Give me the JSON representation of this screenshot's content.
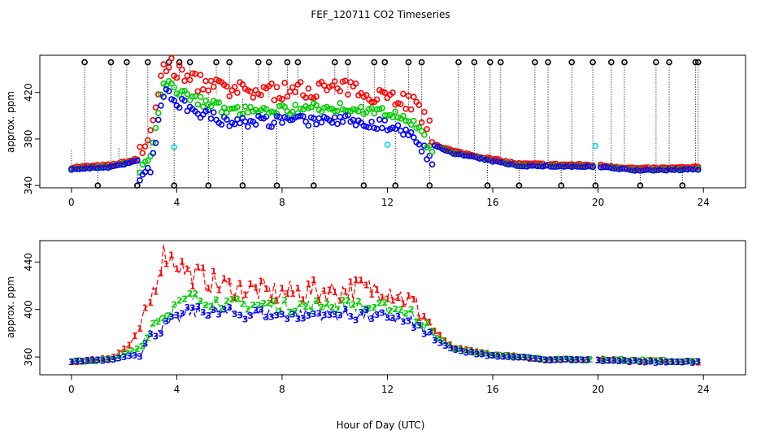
{
  "title": "FEF_120711  CO2 Timeseries",
  "xlabel": "Hour of Day (UTC)",
  "colors": {
    "series1": "#ff0000",
    "series2": "#00cc00",
    "series3": "#0000ff",
    "extra": "#00dddd",
    "extreme": "#000000"
  },
  "chart_data": [
    {
      "type": "scatter",
      "panel": "top",
      "ylabel": "approx. ppm",
      "xlim": [
        -1.2,
        25.6
      ],
      "ylim": [
        338,
        452
      ],
      "xticks": [
        "0",
        "4",
        "8",
        "12",
        "16",
        "20",
        "24"
      ],
      "xtick_values": [
        0,
        4,
        8,
        12,
        16,
        20,
        24
      ],
      "yticks": [
        "340",
        "380",
        "420"
      ],
      "ytick_values": [
        340,
        380,
        420
      ],
      "grid": false,
      "legend": "none",
      "markers": "open circles",
      "series_note": "Red, green and blue circles per time step; cyan occasional points; black circles mark extreme readings at top and bottom of the range, joined to the data by dotted vertical lines.",
      "key_points": [
        {
          "x": 0.0,
          "y": 355
        },
        {
          "x": 1.5,
          "y": 357
        },
        {
          "x": 2.5,
          "y": 362
        },
        {
          "x": 3.0,
          "y": 375
        },
        {
          "x": 3.5,
          "y": 440
        },
        {
          "x": 4.5,
          "y": 425
        },
        {
          "x": 6.0,
          "y": 415
        },
        {
          "x": 8.0,
          "y": 415
        },
        {
          "x": 10.0,
          "y": 418
        },
        {
          "x": 12.0,
          "y": 412
        },
        {
          "x": 13.0,
          "y": 405
        },
        {
          "x": 13.8,
          "y": 375
        },
        {
          "x": 14.5,
          "y": 369
        },
        {
          "x": 16.0,
          "y": 362
        },
        {
          "x": 17.0,
          "y": 358
        },
        {
          "x": 20.0,
          "y": 357
        },
        {
          "x": 21.5,
          "y": 354
        },
        {
          "x": 23.8,
          "y": 355
        }
      ],
      "extreme_times": [
        0.5,
        1.0,
        1.5,
        2.1,
        2.5,
        2.9,
        3.7,
        3.9,
        4.1,
        4.5,
        5.2,
        5.5,
        6.0,
        6.5,
        7.1,
        7.5,
        7.8,
        8.2,
        8.6,
        9.2,
        10.0,
        10.5,
        11.1,
        11.5,
        11.9,
        12.3,
        12.8,
        13.3,
        13.6,
        14.7,
        15.3,
        15.8,
        15.9,
        16.3,
        17.0,
        17.6,
        18.1,
        18.6,
        19.0,
        19.8,
        19.9,
        20.5,
        21.0,
        21.6,
        22.2,
        22.7,
        23.2,
        23.7,
        23.8
      ]
    },
    {
      "type": "line",
      "panel": "bottom",
      "ylabel": "approx. ppm",
      "xlim": [
        -1.2,
        25.6
      ],
      "ylim": [
        345,
        458
      ],
      "xticks": [
        "0",
        "4",
        "8",
        "12",
        "16",
        "20",
        "24"
      ],
      "xtick_values": [
        0,
        4,
        8,
        12,
        16,
        20,
        24
      ],
      "yticks": [
        "360",
        "400",
        "440"
      ],
      "ytick_values": [
        360,
        400,
        440
      ],
      "grid": false,
      "legend": "none",
      "series": [
        {
          "label": "1",
          "color": "#ff0000",
          "key_points": [
            {
              "x": 0.0,
              "y": 356
            },
            {
              "x": 1.5,
              "y": 359
            },
            {
              "x": 2.2,
              "y": 370
            },
            {
              "x": 2.8,
              "y": 392
            },
            {
              "x": 3.5,
              "y": 448
            },
            {
              "x": 4.5,
              "y": 430
            },
            {
              "x": 6.0,
              "y": 418
            },
            {
              "x": 8.0,
              "y": 414
            },
            {
              "x": 10.0,
              "y": 416
            },
            {
              "x": 12.0,
              "y": 418
            },
            {
              "x": 13.0,
              "y": 405
            },
            {
              "x": 13.8,
              "y": 382
            },
            {
              "x": 14.5,
              "y": 368
            },
            {
              "x": 16.0,
              "y": 362
            },
            {
              "x": 18.0,
              "y": 358
            },
            {
              "x": 20.0,
              "y": 358
            },
            {
              "x": 22.0,
              "y": 357
            },
            {
              "x": 23.8,
              "y": 356
            }
          ]
        },
        {
          "label": "2",
          "color": "#00cc00",
          "key_points": [
            {
              "x": 0.0,
              "y": 356
            },
            {
              "x": 1.5,
              "y": 358
            },
            {
              "x": 2.5,
              "y": 367
            },
            {
              "x": 3.2,
              "y": 392
            },
            {
              "x": 4.5,
              "y": 410
            },
            {
              "x": 6.0,
              "y": 405
            },
            {
              "x": 8.0,
              "y": 403
            },
            {
              "x": 10.0,
              "y": 404
            },
            {
              "x": 12.0,
              "y": 402
            },
            {
              "x": 13.0,
              "y": 396
            },
            {
              "x": 13.8,
              "y": 378
            },
            {
              "x": 14.5,
              "y": 367
            },
            {
              "x": 16.0,
              "y": 362
            },
            {
              "x": 18.0,
              "y": 358
            },
            {
              "x": 20.0,
              "y": 358
            },
            {
              "x": 22.0,
              "y": 357
            },
            {
              "x": 23.8,
              "y": 356
            }
          ]
        },
        {
          "label": "3",
          "color": "#0000ff",
          "key_points": [
            {
              "x": 0.0,
              "y": 356
            },
            {
              "x": 1.5,
              "y": 358
            },
            {
              "x": 2.5,
              "y": 362
            },
            {
              "x": 3.2,
              "y": 382
            },
            {
              "x": 4.5,
              "y": 398
            },
            {
              "x": 6.0,
              "y": 397
            },
            {
              "x": 8.0,
              "y": 396
            },
            {
              "x": 10.0,
              "y": 396
            },
            {
              "x": 12.0,
              "y": 394
            },
            {
              "x": 13.0,
              "y": 389
            },
            {
              "x": 13.8,
              "y": 374
            },
            {
              "x": 14.5,
              "y": 366
            },
            {
              "x": 16.0,
              "y": 361
            },
            {
              "x": 18.0,
              "y": 358
            },
            {
              "x": 20.0,
              "y": 357
            },
            {
              "x": 22.0,
              "y": 356
            },
            {
              "x": 23.8,
              "y": 356
            }
          ]
        }
      ],
      "gaps": [
        [
          19.8,
          20.0
        ]
      ],
      "markers": "series number glyphs ('1', '2', '3') plotted along each line"
    }
  ]
}
